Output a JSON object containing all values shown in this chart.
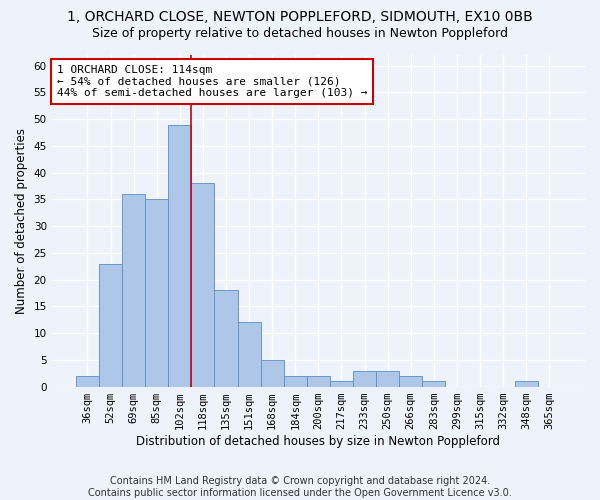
{
  "title_line1": "1, ORCHARD CLOSE, NEWTON POPPLEFORD, SIDMOUTH, EX10 0BB",
  "title_line2": "Size of property relative to detached houses in Newton Poppleford",
  "xlabel": "Distribution of detached houses by size in Newton Poppleford",
  "ylabel": "Number of detached properties",
  "categories": [
    "36sqm",
    "52sqm",
    "69sqm",
    "85sqm",
    "102sqm",
    "118sqm",
    "135sqm",
    "151sqm",
    "168sqm",
    "184sqm",
    "200sqm",
    "217sqm",
    "233sqm",
    "250sqm",
    "266sqm",
    "283sqm",
    "299sqm",
    "315sqm",
    "332sqm",
    "348sqm",
    "365sqm"
  ],
  "values": [
    2,
    23,
    36,
    35,
    49,
    38,
    18,
    12,
    5,
    2,
    2,
    1,
    3,
    3,
    2,
    1,
    0,
    0,
    0,
    1,
    0
  ],
  "bar_color": "#aec6e8",
  "bar_edge_color": "#5a8fc2",
  "property_bin_index": 4,
  "annotation_text": "1 ORCHARD CLOSE: 114sqm\n← 54% of detached houses are smaller (126)\n44% of semi-detached houses are larger (103) →",
  "vline_color": "#cc0000",
  "annotation_box_edge_color": "#cc0000",
  "ylim": [
    0,
    62
  ],
  "yticks": [
    0,
    5,
    10,
    15,
    20,
    25,
    30,
    35,
    40,
    45,
    50,
    55,
    60
  ],
  "footer_line1": "Contains HM Land Registry data © Crown copyright and database right 2024.",
  "footer_line2": "Contains public sector information licensed under the Open Government Licence v3.0.",
  "background_color": "#eef2fb",
  "plot_background_color": "#eef2fb",
  "grid_color": "#ffffff",
  "title_fontsize": 10,
  "subtitle_fontsize": 9,
  "axis_label_fontsize": 8.5,
  "tick_fontsize": 7.5,
  "annotation_fontsize": 8,
  "footer_fontsize": 7
}
